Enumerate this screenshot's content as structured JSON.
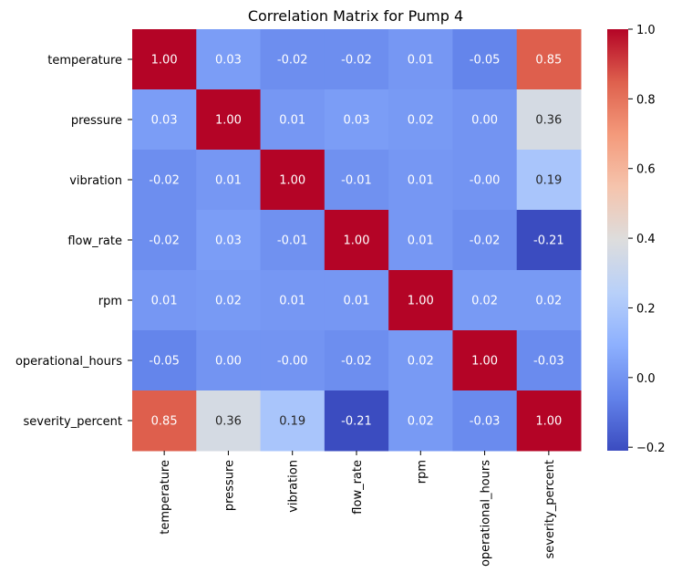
{
  "chart_data": {
    "type": "heatmap",
    "title": "Correlation Matrix for Pump 4",
    "xlabel": "",
    "ylabel": "",
    "categories": [
      "temperature",
      "pressure",
      "vibration",
      "flow_rate",
      "rpm",
      "operational_hours",
      "severity_percent"
    ],
    "matrix": [
      [
        1.0,
        0.03,
        -0.02,
        -0.02,
        0.01,
        -0.05,
        0.85
      ],
      [
        0.03,
        1.0,
        0.01,
        0.03,
        0.02,
        0.0,
        0.36
      ],
      [
        -0.02,
        0.01,
        1.0,
        -0.01,
        0.01,
        -0.0,
        0.19
      ],
      [
        -0.02,
        0.03,
        -0.01,
        1.0,
        0.01,
        -0.02,
        -0.21
      ],
      [
        0.01,
        0.02,
        0.01,
        0.01,
        1.0,
        0.02,
        0.02
      ],
      [
        -0.05,
        0.0,
        -0.0,
        -0.02,
        0.02,
        1.0,
        -0.03
      ],
      [
        0.85,
        0.36,
        0.19,
        -0.21,
        0.02,
        -0.03,
        1.0
      ]
    ],
    "cell_labels": [
      [
        "1.00",
        "0.03",
        "-0.02",
        "-0.02",
        "0.01",
        "-0.05",
        "0.85"
      ],
      [
        "0.03",
        "1.00",
        "0.01",
        "0.03",
        "0.02",
        "0.00",
        "0.36"
      ],
      [
        "-0.02",
        "0.01",
        "1.00",
        "-0.01",
        "0.01",
        "-0.00",
        "0.19"
      ],
      [
        "-0.02",
        "0.03",
        "-0.01",
        "1.00",
        "0.01",
        "-0.02",
        "-0.21"
      ],
      [
        "0.01",
        "0.02",
        "0.01",
        "0.01",
        "1.00",
        "0.02",
        "0.02"
      ],
      [
        "-0.05",
        "0.00",
        "-0.00",
        "-0.02",
        "0.02",
        "1.00",
        "-0.03"
      ],
      [
        "0.85",
        "0.36",
        "0.19",
        "-0.21",
        "0.02",
        "-0.03",
        "1.00"
      ]
    ],
    "colormap": "coolwarm",
    "colorbar": {
      "range": [
        -0.21,
        1.0
      ],
      "ticks": [
        -0.2,
        0.0,
        0.2,
        0.4,
        0.6,
        0.8,
        1.0
      ],
      "tick_labels": [
        "−0.2",
        "0.0",
        "0.2",
        "0.4",
        "0.6",
        "0.8",
        "1.0"
      ]
    },
    "grid": false,
    "legend": "colorbar-right"
  }
}
